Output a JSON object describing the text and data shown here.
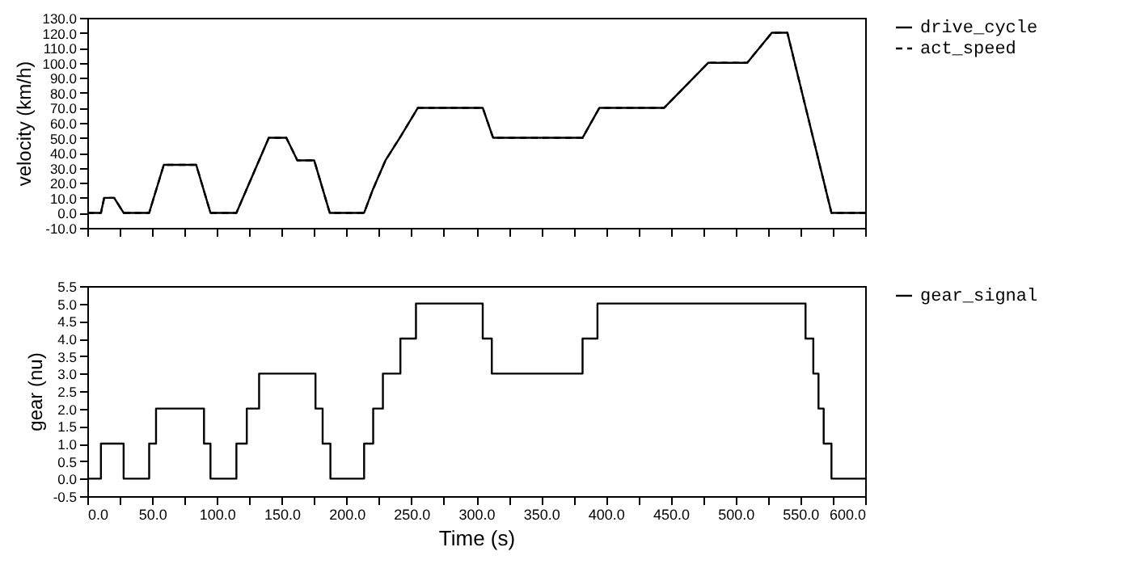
{
  "chart_data": [
    {
      "type": "line",
      "ylabel": "velocity (km/h)",
      "legend": "right",
      "tick_labels": "y",
      "xlim": [
        0,
        600
      ],
      "xticks": [
        {
          "value": 0,
          "label": null
        },
        {
          "value": 25,
          "label": null
        },
        {
          "value": 50,
          "label": null
        },
        {
          "value": 75,
          "label": null
        },
        {
          "value": 100,
          "label": null
        },
        {
          "value": 125,
          "label": null
        },
        {
          "value": 150,
          "label": null
        },
        {
          "value": 175,
          "label": null
        },
        {
          "value": 200,
          "label": null
        },
        {
          "value": 225,
          "label": null
        },
        {
          "value": 250,
          "label": null
        },
        {
          "value": 275,
          "label": null
        },
        {
          "value": 300,
          "label": null
        },
        {
          "value": 325,
          "label": null
        },
        {
          "value": 350,
          "label": null
        },
        {
          "value": 375,
          "label": null
        },
        {
          "value": 400,
          "label": null
        },
        {
          "value": 425,
          "label": null
        },
        {
          "value": 450,
          "label": null
        },
        {
          "value": 475,
          "label": null
        },
        {
          "value": 500,
          "label": null
        },
        {
          "value": 525,
          "label": null
        },
        {
          "value": 550,
          "label": null
        },
        {
          "value": 575,
          "label": null
        },
        {
          "value": 600,
          "label": null
        }
      ],
      "ylim": [
        -10,
        130
      ],
      "yticks": [
        {
          "value": -10,
          "label": "-10.0"
        },
        {
          "value": 0,
          "label": "0.0"
        },
        {
          "value": 10,
          "label": "10.0"
        },
        {
          "value": 20,
          "label": "20.0"
        },
        {
          "value": 30,
          "label": "30.0"
        },
        {
          "value": 40,
          "label": "40.0"
        },
        {
          "value": 50,
          "label": "50.0"
        },
        {
          "value": 60,
          "label": "60.0"
        },
        {
          "value": 70,
          "label": "70.0"
        },
        {
          "value": 80,
          "label": "80.0"
        },
        {
          "value": 90,
          "label": "90.0"
        },
        {
          "value": 100,
          "label": "100.0"
        },
        {
          "value": 110,
          "label": "110.0"
        },
        {
          "value": 120,
          "label": "120.0"
        },
        {
          "value": 130,
          "label": "130.0"
        }
      ],
      "series": [
        {
          "name": "drive_cycle",
          "color": "#000000",
          "line_style": "solid",
          "x": [
            0,
            10.5,
            13,
            20.7,
            28,
            47.7,
            59,
            84,
            95,
            115,
            140,
            153.5,
            162,
            175,
            187,
            213.5,
            220,
            230,
            241,
            255,
            305,
            313,
            382,
            395,
            445,
            479,
            509,
            528,
            540,
            574,
            600
          ],
          "values": [
            0,
            0,
            10,
            10,
            0,
            0,
            32,
            32,
            0,
            0,
            50,
            50,
            35,
            35,
            0,
            0,
            15,
            35,
            50,
            70,
            70,
            50,
            50,
            70,
            70,
            100,
            100,
            120,
            120,
            0,
            0
          ]
        },
        {
          "name": "act_speed",
          "color": "#000000",
          "line_style": "dashed",
          "x": [
            0,
            10.5,
            13,
            20.7,
            28,
            47.7,
            59,
            84,
            95,
            115,
            140,
            153.5,
            162,
            175,
            187,
            213.5,
            220,
            230,
            241,
            255,
            305,
            313,
            382,
            395,
            445,
            479,
            509,
            528,
            540,
            574,
            600
          ],
          "values": [
            0,
            0,
            10,
            10,
            0,
            0,
            32,
            32,
            0,
            0,
            50,
            50,
            35,
            35,
            0,
            0,
            15,
            35,
            50,
            70,
            70,
            50,
            50,
            70,
            70,
            100,
            100,
            120,
            120,
            0,
            0
          ]
        }
      ]
    },
    {
      "type": "step",
      "ylabel": "gear (nu)",
      "xlabel": "Time (s)",
      "legend": "right",
      "xlim": [
        0,
        600
      ],
      "xticks": [
        {
          "value": 0,
          "label": "0.0"
        },
        {
          "value": 25,
          "label": null
        },
        {
          "value": 50,
          "label": "50.0"
        },
        {
          "value": 75,
          "label": null
        },
        {
          "value": 100,
          "label": "100.0"
        },
        {
          "value": 125,
          "label": null
        },
        {
          "value": 150,
          "label": "150.0"
        },
        {
          "value": 175,
          "label": null
        },
        {
          "value": 200,
          "label": "200.0"
        },
        {
          "value": 225,
          "label": null
        },
        {
          "value": 250,
          "label": "250.0"
        },
        {
          "value": 275,
          "label": null
        },
        {
          "value": 300,
          "label": "300.0"
        },
        {
          "value": 325,
          "label": null
        },
        {
          "value": 350,
          "label": "350.0"
        },
        {
          "value": 375,
          "label": null
        },
        {
          "value": 400,
          "label": "400.0"
        },
        {
          "value": 425,
          "label": null
        },
        {
          "value": 450,
          "label": "450.0"
        },
        {
          "value": 475,
          "label": null
        },
        {
          "value": 500,
          "label": "500.0"
        },
        {
          "value": 525,
          "label": null
        },
        {
          "value": 550,
          "label": "550.0"
        },
        {
          "value": 575,
          "label": null
        },
        {
          "value": 600,
          "label": "600.0"
        }
      ],
      "ylim": [
        -0.5,
        5.5
      ],
      "yticks": [
        {
          "value": -0.5,
          "label": "-0.5"
        },
        {
          "value": 0,
          "label": "0.0"
        },
        {
          "value": 0.5,
          "label": "0.5"
        },
        {
          "value": 1,
          "label": "1.0"
        },
        {
          "value": 1.5,
          "label": "1.5"
        },
        {
          "value": 2,
          "label": "2.0"
        },
        {
          "value": 2.5,
          "label": "2.5"
        },
        {
          "value": 3,
          "label": "3.0"
        },
        {
          "value": 3.5,
          "label": "3.5"
        },
        {
          "value": 4,
          "label": "4.0"
        },
        {
          "value": 4.5,
          "label": "4.5"
        },
        {
          "value": 5,
          "label": "5.0"
        },
        {
          "value": 5.5,
          "label": "5.5"
        }
      ],
      "series": [
        {
          "name": "gear_signal",
          "color": "#000000",
          "line_style": "solid",
          "x": [
            0,
            10.5,
            28,
            47.7,
            53,
            90,
            95,
            115,
            123,
            132.5,
            176,
            181.5,
            187.5,
            213.5,
            220.5,
            228,
            241.5,
            253.5,
            305,
            312,
            382,
            393.5,
            554,
            560,
            564,
            568,
            574,
            600
          ],
          "values": [
            0,
            1,
            0,
            1,
            2,
            1,
            0,
            1,
            2,
            3,
            2,
            1,
            0,
            1,
            2,
            3,
            4,
            5,
            4,
            3,
            4,
            5,
            4,
            3,
            2,
            1,
            0,
            0
          ]
        }
      ]
    }
  ]
}
